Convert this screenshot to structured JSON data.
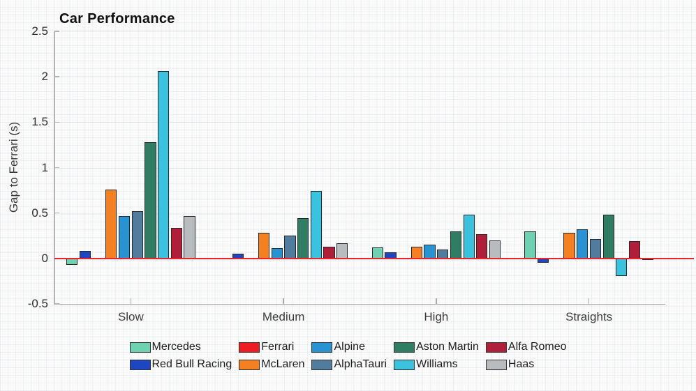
{
  "chart_data": {
    "type": "bar",
    "title": "Car Performance",
    "xlabel": "",
    "ylabel": "Gap to Ferrari (s)",
    "categories": [
      "Slow",
      "Medium",
      "High",
      "Straights"
    ],
    "ylim": [
      -0.5,
      2.5
    ],
    "y_ticks": [
      2.5,
      2,
      1.5,
      1,
      0.5,
      0,
      -0.5
    ],
    "grid": "faint graph-paper background",
    "zero_line": {
      "value": 0,
      "color": "#e8232b"
    },
    "series": [
      {
        "name": "Mercedes",
        "color": "#6fd0b2",
        "values": [
          -0.07,
          0.01,
          0.12,
          0.3
        ]
      },
      {
        "name": "Red Bull Racing",
        "color": "#1e45c2",
        "values": [
          0.08,
          0.05,
          0.07,
          -0.05
        ]
      },
      {
        "name": "Ferrari",
        "color": "#ee1c25",
        "values": [
          0.0,
          0.0,
          0.0,
          0.0
        ]
      },
      {
        "name": "McLaren",
        "color": "#f58021",
        "values": [
          0.76,
          0.28,
          0.13,
          0.28
        ]
      },
      {
        "name": "Alpine",
        "color": "#2793d2",
        "values": [
          0.47,
          0.11,
          0.15,
          0.32
        ]
      },
      {
        "name": "AlphaTauri",
        "color": "#527c9e",
        "values": [
          0.52,
          0.25,
          0.1,
          0.21
        ]
      },
      {
        "name": "Aston Martin",
        "color": "#2f7d62",
        "values": [
          1.28,
          0.44,
          0.3,
          0.48
        ]
      },
      {
        "name": "Williams",
        "color": "#3bc2de",
        "values": [
          2.06,
          0.74,
          0.48,
          -0.19
        ]
      },
      {
        "name": "Alfa Romeo",
        "color": "#b01f3a",
        "values": [
          0.34,
          0.13,
          0.27,
          0.19
        ]
      },
      {
        "name": "Haas",
        "color": "#b9bcbf",
        "values": [
          0.47,
          0.17,
          0.2,
          -0.01
        ]
      }
    ],
    "legend": {
      "position": "bottom",
      "rows": [
        [
          "Mercedes",
          "Ferrari",
          "Alpine",
          "Aston Martin",
          "Alfa Romeo"
        ],
        [
          "Red Bull Racing",
          "McLaren",
          "AlphaTauri",
          "Williams",
          "Haas"
        ]
      ]
    }
  }
}
